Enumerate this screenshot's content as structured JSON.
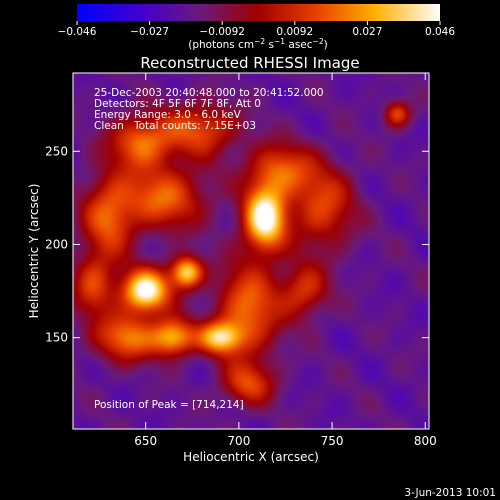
{
  "chart_data": {
    "type": "heatmap",
    "title": "Reconstructed RHESSI Image",
    "xlabel": "Heliocentric X (arcsec)",
    "ylabel": "Heliocentric Y (arcsec)",
    "xlim": [
      611,
      802
    ],
    "ylim": [
      101,
      292
    ],
    "xticks": [
      650,
      700,
      750,
      800
    ],
    "yticks": [
      150,
      200,
      250
    ],
    "colorbar": {
      "ticks": [
        "−0.046",
        "−0.027",
        "−0.0092",
        "0.0092",
        "0.027",
        "0.046"
      ],
      "range": [
        -0.046,
        0.046
      ],
      "unit_prefix": "(photons cm",
      "unit_exp1": "−2",
      "unit_mid": " s",
      "unit_exp2": "−1",
      "unit_mid2": " asec",
      "unit_exp3": "−2",
      "unit_suffix": ")"
    },
    "annotations": {
      "time_range": "25-Dec-2003 20:40:48.000 to 20:41:52.000",
      "detectors": "Detectors: 4F 5F 6F 7F 8F, Att 0",
      "energy": "Energy Range: 3.0 - 6.0 keV",
      "algorithm": "Clean",
      "counts": "Total counts: 7.15E+03",
      "peak": "Position of Peak = [714,214]"
    },
    "peak": {
      "x": 714,
      "y": 214
    },
    "sources": [
      {
        "x": 714,
        "y": 214,
        "sx": 8,
        "sy": 12,
        "a": 1.0
      },
      {
        "x": 650,
        "y": 175,
        "sx": 9,
        "sy": 8,
        "a": 1.0
      },
      {
        "x": 672,
        "y": 185,
        "sx": 6,
        "sy": 6,
        "a": 0.85
      },
      {
        "x": 690,
        "y": 150,
        "sx": 8,
        "sy": 6,
        "a": 0.72
      },
      {
        "x": 665,
        "y": 150,
        "sx": 8,
        "sy": 7,
        "a": 0.72
      },
      {
        "x": 705,
        "y": 165,
        "sx": 12,
        "sy": 18,
        "a": 0.58
      },
      {
        "x": 640,
        "y": 150,
        "sx": 12,
        "sy": 9,
        "a": 0.6
      },
      {
        "x": 660,
        "y": 225,
        "sx": 16,
        "sy": 12,
        "a": 0.55
      },
      {
        "x": 630,
        "y": 215,
        "sx": 10,
        "sy": 16,
        "a": 0.52
      },
      {
        "x": 648,
        "y": 255,
        "sx": 12,
        "sy": 10,
        "a": 0.58
      },
      {
        "x": 680,
        "y": 262,
        "sx": 14,
        "sy": 10,
        "a": 0.5
      },
      {
        "x": 722,
        "y": 240,
        "sx": 12,
        "sy": 10,
        "a": 0.52
      },
      {
        "x": 745,
        "y": 220,
        "sx": 12,
        "sy": 16,
        "a": 0.48
      },
      {
        "x": 705,
        "y": 125,
        "sx": 10,
        "sy": 8,
        "a": 0.45
      },
      {
        "x": 735,
        "y": 175,
        "sx": 9,
        "sy": 10,
        "a": 0.44
      },
      {
        "x": 785,
        "y": 270,
        "sx": 5,
        "sy": 5,
        "a": 0.5
      },
      {
        "x": 622,
        "y": 178,
        "sx": 8,
        "sy": 12,
        "a": 0.46
      }
    ]
  },
  "footer": {
    "date": "3-Jun-2013 10:01"
  }
}
